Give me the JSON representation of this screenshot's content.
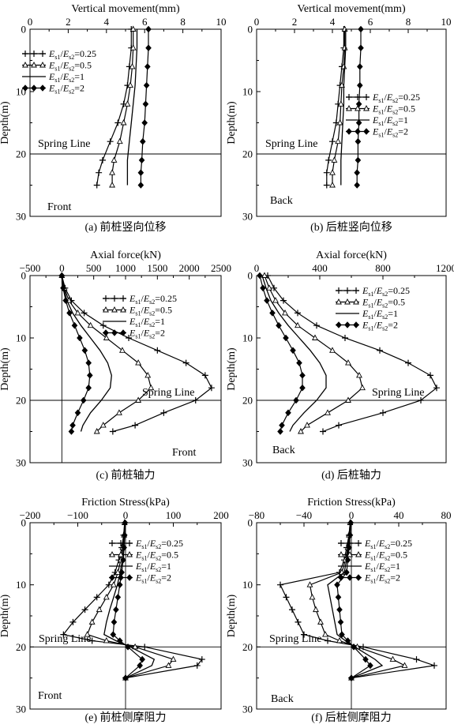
{
  "chart_data": [
    {
      "type": "line",
      "panel": "a",
      "caption": "(a) 前桩竖向位移",
      "xlabel": "Vertical movement(mm)",
      "ylabel": "Depth(m)",
      "xlim": [
        0,
        10
      ],
      "ylim": [
        0,
        30
      ],
      "xticks": [
        0,
        2,
        4,
        6,
        8,
        10
      ],
      "yticks": [
        0,
        10,
        20,
        30
      ],
      "xticks_top": true,
      "y_inverted": true,
      "ref_line_y": 20,
      "ref_line_x": null,
      "ref_label": "Spring Line",
      "corner_label": "Front",
      "legend_position": "upper-left",
      "series": [
        {
          "name": "Es1/Es2=0.25",
          "marker": "plus",
          "x": [
            5.3,
            5.3,
            5.2,
            5.1,
            4.9,
            4.6,
            4.2,
            3.8,
            3.6,
            3.5
          ],
          "y": [
            0,
            3,
            6,
            9,
            12,
            15,
            18,
            21,
            23,
            25
          ]
        },
        {
          "name": "Es1/Es2=0.5",
          "marker": "triangle",
          "x": [
            5.4,
            5.4,
            5.35,
            5.25,
            5.1,
            4.9,
            4.7,
            4.4,
            4.3,
            4.3
          ],
          "y": [
            0,
            3,
            6,
            9,
            12,
            15,
            18,
            21,
            23,
            25
          ]
        },
        {
          "name": "Es1/Es2=1",
          "marker": "none",
          "x": [
            5.6,
            5.6,
            5.55,
            5.5,
            5.4,
            5.3,
            5.2,
            5.1,
            5.1,
            5.1
          ],
          "y": [
            0,
            3,
            6,
            9,
            12,
            15,
            18,
            21,
            23,
            25
          ]
        },
        {
          "name": "Es1/Es2=2",
          "marker": "diamond",
          "x": [
            6.2,
            6.2,
            6.15,
            6.1,
            6.05,
            6.0,
            5.9,
            5.85,
            5.8,
            5.8
          ],
          "y": [
            0,
            3,
            6,
            9,
            12,
            15,
            18,
            21,
            23,
            25
          ]
        }
      ]
    },
    {
      "type": "line",
      "panel": "b",
      "caption": "(b) 后桩竖向位移",
      "xlabel": "Vertical movement(mm)",
      "ylabel": "Depth(m)",
      "xlim": [
        0,
        10
      ],
      "ylim": [
        0,
        30
      ],
      "xticks": [
        0,
        2,
        4,
        6,
        8,
        10
      ],
      "yticks": [
        0,
        10,
        20,
        30
      ],
      "xticks_top": true,
      "y_inverted": true,
      "ref_line_y": 20,
      "ref_line_x": null,
      "ref_label": "Spring Line",
      "corner_label": "Back",
      "legend_position": "right",
      "series": [
        {
          "name": "Es1/Es2=0.25",
          "marker": "plus",
          "x": [
            4.6,
            4.6,
            4.5,
            4.4,
            4.3,
            4.2,
            4.0,
            3.8,
            3.7,
            3.7
          ],
          "y": [
            0,
            3,
            6,
            9,
            12,
            15,
            18,
            21,
            23,
            25
          ]
        },
        {
          "name": "Es1/Es2=0.5",
          "marker": "triangle",
          "x": [
            4.65,
            4.65,
            4.6,
            4.5,
            4.45,
            4.4,
            4.3,
            4.1,
            4.0,
            4.0
          ],
          "y": [
            0,
            3,
            6,
            9,
            12,
            15,
            18,
            21,
            23,
            25
          ]
        },
        {
          "name": "Es1/Es2=1",
          "marker": "none",
          "x": [
            4.7,
            4.7,
            4.65,
            4.6,
            4.6,
            4.55,
            4.5,
            4.45,
            4.45,
            4.45
          ],
          "y": [
            0,
            3,
            6,
            9,
            12,
            15,
            18,
            21,
            23,
            25
          ]
        },
        {
          "name": "Es1/Es2=2",
          "marker": "diamond",
          "x": [
            5.5,
            5.5,
            5.45,
            5.45,
            5.4,
            5.4,
            5.35,
            5.35,
            5.3,
            5.3
          ],
          "y": [
            0,
            3,
            6,
            9,
            12,
            15,
            18,
            21,
            23,
            25
          ]
        }
      ]
    },
    {
      "type": "line",
      "panel": "c",
      "caption": "(c) 前桩轴力",
      "xlabel": "Axial force(kN)",
      "ylabel": "Depth(m)",
      "xlim": [
        -500,
        2500
      ],
      "ylim": [
        0,
        30
      ],
      "xticks": [
        -500,
        0,
        500,
        1000,
        1500,
        2000,
        2500
      ],
      "yticks": [
        0,
        10,
        20,
        30
      ],
      "xticks_top": true,
      "y_inverted": true,
      "ref_line_y": 20,
      "ref_line_x": 0,
      "ref_label": "Spring Line",
      "corner_label": "Front",
      "legend_position": "upper-right",
      "series": [
        {
          "name": "Es1/Es2=0.25",
          "marker": "plus",
          "x": [
            0,
            50,
            150,
            350,
            650,
            1050,
            1500,
            1950,
            2250,
            2350,
            2100,
            1600,
            1150,
            800
          ],
          "y": [
            0,
            2,
            4,
            6,
            8,
            10,
            12,
            14,
            16,
            18,
            20,
            22,
            24,
            25
          ]
        },
        {
          "name": "Es1/Es2=0.5",
          "marker": "triangle",
          "x": [
            0,
            40,
            110,
            250,
            450,
            700,
            950,
            1200,
            1350,
            1400,
            1200,
            900,
            650,
            550
          ],
          "y": [
            0,
            2,
            4,
            6,
            8,
            10,
            12,
            14,
            16,
            18,
            20,
            22,
            24,
            25
          ]
        },
        {
          "name": "Es1/Es2=1",
          "marker": "none",
          "x": [
            0,
            30,
            80,
            170,
            300,
            450,
            600,
            720,
            780,
            760,
            620,
            450,
            330,
            300
          ],
          "y": [
            0,
            2,
            4,
            6,
            8,
            10,
            12,
            14,
            16,
            18,
            20,
            22,
            24,
            25
          ]
        },
        {
          "name": "Es1/Es2=2",
          "marker": "diamond",
          "x": [
            0,
            20,
            60,
            120,
            200,
            280,
            360,
            420,
            440,
            420,
            340,
            250,
            170,
            150
          ],
          "y": [
            0,
            2,
            4,
            6,
            8,
            10,
            12,
            14,
            16,
            18,
            20,
            22,
            24,
            25
          ]
        }
      ]
    },
    {
      "type": "line",
      "panel": "d",
      "caption": "(d) 后桩轴力",
      "xlabel": "Axial force(kN)",
      "ylabel": "Depth(m)",
      "xlim": [
        0,
        1200
      ],
      "ylim": [
        0,
        30
      ],
      "xticks": [
        0,
        400,
        800,
        1200
      ],
      "yticks": [
        0,
        10,
        20,
        30
      ],
      "xticks_top": true,
      "y_inverted": true,
      "ref_line_y": 20,
      "ref_line_x": null,
      "ref_label": "Spring Line",
      "corner_label": "Back",
      "legend_position": "upper-right",
      "series": [
        {
          "name": "Es1/Es2=0.25",
          "marker": "plus",
          "x": [
            70,
            110,
            170,
            260,
            380,
            560,
            780,
            960,
            1100,
            1140,
            1040,
            800,
            520,
            420
          ],
          "y": [
            0,
            2,
            4,
            6,
            8,
            10,
            12,
            14,
            16,
            18,
            20,
            22,
            24,
            25
          ]
        },
        {
          "name": "Es1/Es2=0.5",
          "marker": "triangle",
          "x": [
            50,
            80,
            120,
            180,
            260,
            370,
            480,
            580,
            650,
            670,
            580,
            450,
            320,
            280
          ],
          "y": [
            0,
            2,
            4,
            6,
            8,
            10,
            12,
            14,
            16,
            18,
            20,
            22,
            24,
            25
          ]
        },
        {
          "name": "Es1/Es2=1",
          "marker": "none",
          "x": [
            35,
            60,
            90,
            140,
            200,
            270,
            340,
            400,
            440,
            440,
            380,
            300,
            230,
            210
          ],
          "y": [
            0,
            2,
            4,
            6,
            8,
            10,
            12,
            14,
            16,
            18,
            20,
            22,
            24,
            25
          ]
        },
        {
          "name": "Es1/Es2=2",
          "marker": "diamond",
          "x": [
            20,
            40,
            65,
            100,
            140,
            185,
            230,
            270,
            290,
            290,
            250,
            200,
            160,
            150
          ],
          "y": [
            0,
            2,
            4,
            6,
            8,
            10,
            12,
            14,
            16,
            18,
            20,
            22,
            24,
            25
          ]
        }
      ]
    },
    {
      "type": "line",
      "panel": "e",
      "caption": "(e) 前桩侧摩阻力",
      "xlabel": "Friction Stress(kPa)",
      "ylabel": "Depth(m)",
      "xlim": [
        -200,
        200
      ],
      "ylim": [
        0,
        30
      ],
      "xticks": [
        -200,
        -100,
        0,
        100,
        200
      ],
      "yticks": [
        0,
        10,
        20,
        30
      ],
      "xticks_top": true,
      "y_inverted": true,
      "ref_line_y": 20,
      "ref_line_x": 0,
      "ref_label": "Spring Line",
      "corner_label": "Front",
      "legend_position": "upper-right",
      "series": [
        {
          "name": "Es1/Es2=0.25",
          "marker": "plus",
          "x": [
            -2,
            -4,
            -8,
            -14,
            -22,
            -35,
            -60,
            -85,
            -110,
            -130,
            -70,
            40,
            160,
            150,
            0
          ],
          "y": [
            0,
            2,
            4,
            6,
            8,
            10,
            12,
            14,
            16,
            18,
            19,
            20,
            22,
            23,
            25
          ]
        },
        {
          "name": "Es1/Es2=0.5",
          "marker": "triangle",
          "x": [
            -2,
            -3,
            -6,
            -10,
            -16,
            -25,
            -40,
            -55,
            -70,
            -80,
            -40,
            20,
            100,
            90,
            0
          ],
          "y": [
            0,
            2,
            4,
            6,
            8,
            10,
            12,
            14,
            16,
            18,
            19,
            20,
            22,
            23,
            25
          ]
        },
        {
          "name": "Es1/Es2=1",
          "marker": "none",
          "x": [
            -1,
            -2,
            -4,
            -7,
            -11,
            -17,
            -25,
            -33,
            -40,
            -45,
            -20,
            10,
            60,
            55,
            0
          ],
          "y": [
            0,
            2,
            4,
            6,
            8,
            10,
            12,
            14,
            16,
            18,
            19,
            20,
            22,
            23,
            25
          ]
        },
        {
          "name": "Es1/Es2=2",
          "marker": "diamond",
          "x": [
            -1,
            -2,
            -3,
            -5,
            -8,
            -12,
            -16,
            -20,
            -24,
            -26,
            -12,
            5,
            35,
            30,
            0
          ],
          "y": [
            0,
            2,
            4,
            6,
            8,
            10,
            12,
            14,
            16,
            18,
            19,
            20,
            22,
            23,
            25
          ]
        }
      ]
    },
    {
      "type": "line",
      "panel": "f",
      "caption": "(f) 后桩侧摩阻力",
      "xlabel": "Friction Stress(kPa)",
      "ylabel": "Depth(m)",
      "xlim": [
        -80,
        80
      ],
      "ylim": [
        0,
        30
      ],
      "xticks": [
        -80,
        -40,
        0,
        40,
        80
      ],
      "yticks": [
        0,
        10,
        20,
        30
      ],
      "xticks_top": true,
      "y_inverted": true,
      "ref_line_y": 20,
      "ref_line_x": 0,
      "ref_label": "Spring Line",
      "corner_label": "Back",
      "legend_position": "upper-right",
      "series": [
        {
          "name": "Es1/Es2=0.25",
          "marker": "plus",
          "x": [
            -1,
            -2,
            -4,
            -6,
            -10,
            -60,
            -55,
            -50,
            -45,
            -40,
            -20,
            10,
            55,
            70,
            0
          ],
          "y": [
            0,
            2,
            4,
            6,
            8,
            10,
            12,
            14,
            16,
            18,
            19,
            20,
            22,
            23,
            25
          ]
        },
        {
          "name": "Es1/Es2=0.5",
          "marker": "triangle",
          "x": [
            -1,
            -2,
            -3,
            -5,
            -8,
            -35,
            -33,
            -30,
            -26,
            -22,
            -10,
            5,
            35,
            45,
            0
          ],
          "y": [
            0,
            2,
            4,
            6,
            8,
            10,
            12,
            14,
            16,
            18,
            19,
            20,
            22,
            23,
            25
          ]
        },
        {
          "name": "Es1/Es2=1",
          "marker": "none",
          "x": [
            -1,
            -1.5,
            -2.5,
            -4,
            -6,
            -20,
            -18,
            -16,
            -14,
            -12,
            -5,
            3,
            20,
            26,
            0
          ],
          "y": [
            0,
            2,
            4,
            6,
            8,
            10,
            12,
            14,
            16,
            18,
            19,
            20,
            22,
            23,
            25
          ]
        },
        {
          "name": "Es1/Es2=2",
          "marker": "diamond",
          "x": [
            -0.5,
            -1,
            -2,
            -3,
            -4,
            -12,
            -11,
            -10,
            -9,
            -8,
            -3,
            2,
            12,
            16,
            0
          ],
          "y": [
            0,
            2,
            4,
            6,
            8,
            10,
            12,
            14,
            16,
            18,
            19,
            20,
            22,
            23,
            25
          ]
        }
      ]
    }
  ]
}
